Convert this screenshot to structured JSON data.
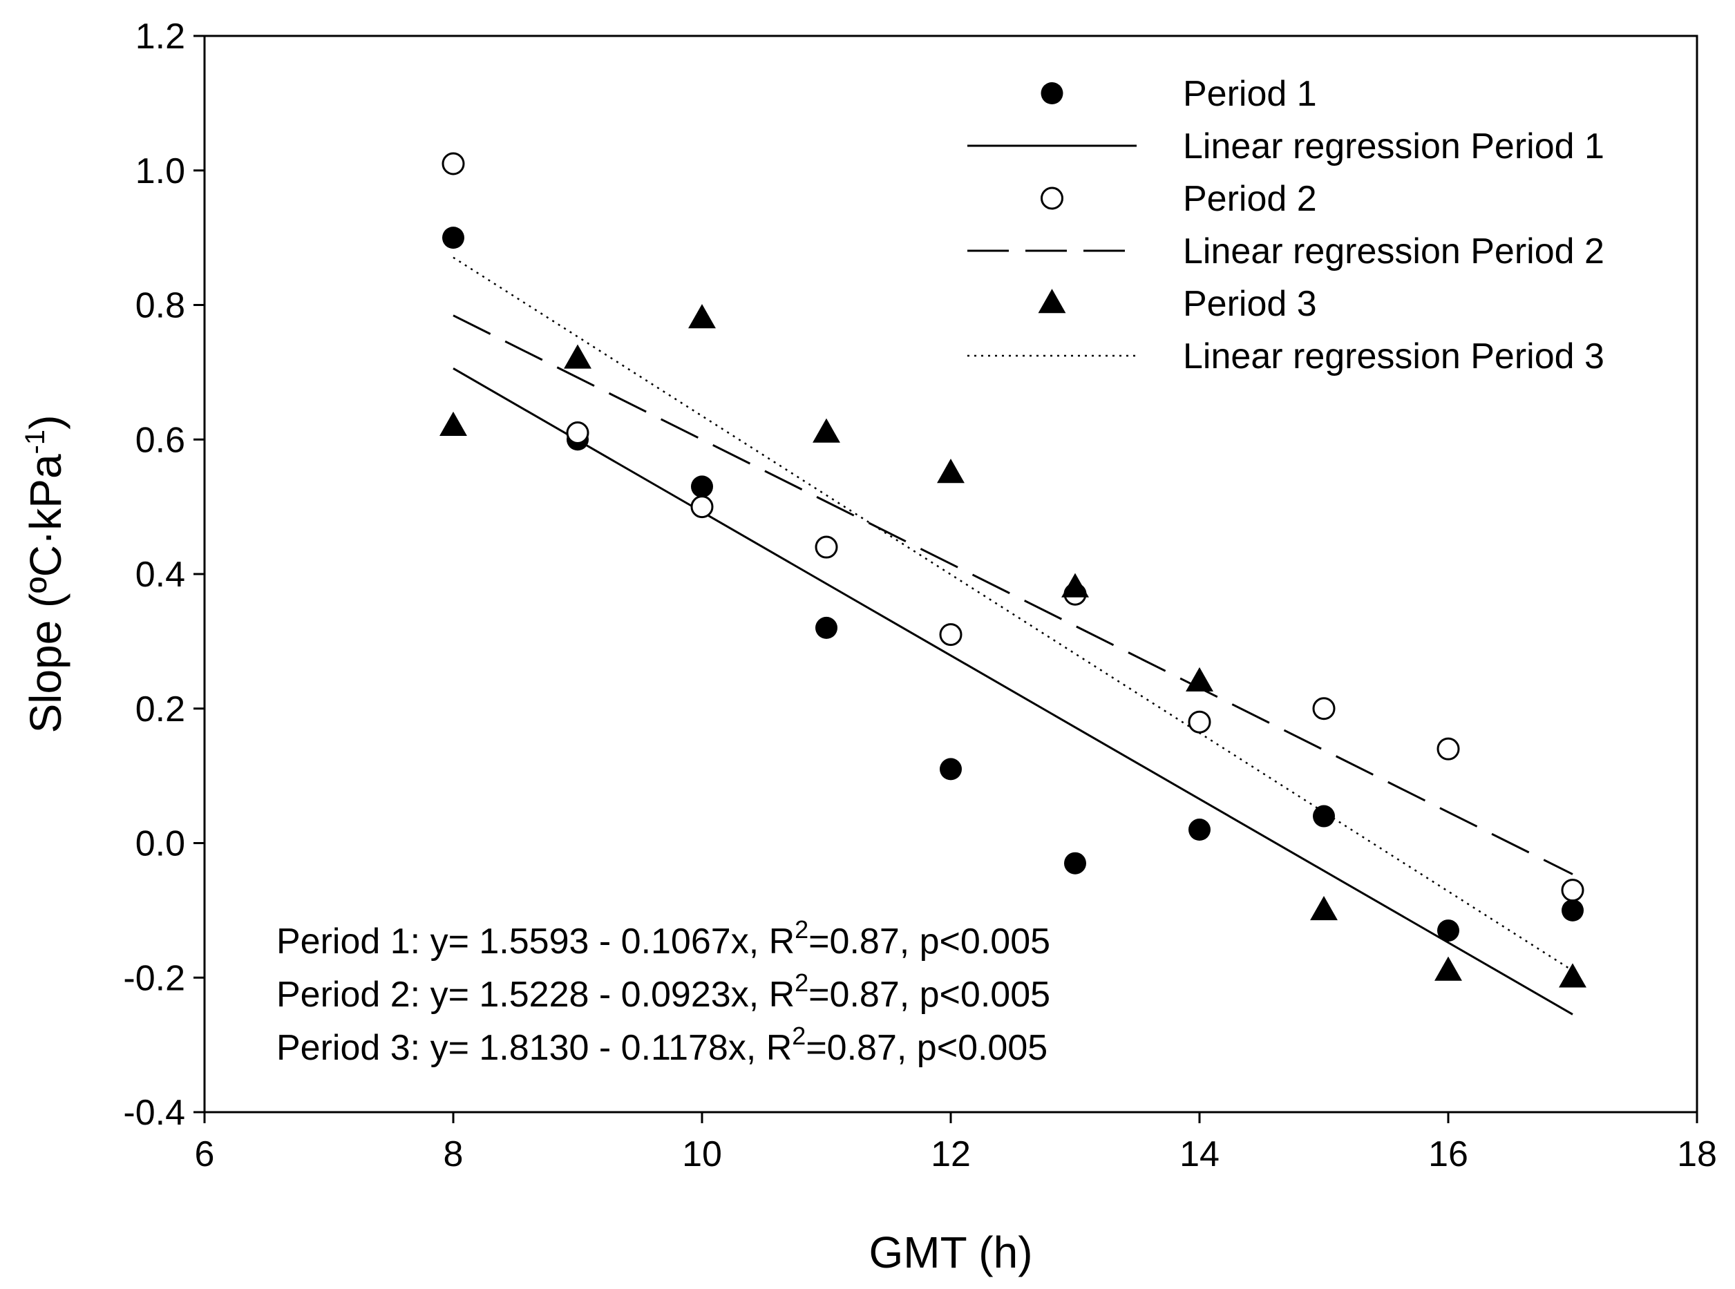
{
  "chart_data": {
    "type": "scatter",
    "title": "",
    "xlabel": "GMT (h)",
    "ylabel": {
      "main": "Slope (ºC·kPa",
      "sup": "-1",
      "end": ")"
    },
    "xlim": [
      6,
      18
    ],
    "ylim": [
      -0.4,
      1.2
    ],
    "x_ticks": [
      6,
      8,
      10,
      12,
      14,
      16,
      18
    ],
    "y_ticks": [
      -0.4,
      -0.2,
      0.0,
      0.2,
      0.4,
      0.6,
      0.8,
      1.0,
      1.2
    ],
    "x_tick_labels": [
      "6",
      "8",
      "10",
      "12",
      "14",
      "16",
      "18"
    ],
    "y_tick_labels": [
      "-0.4",
      "-0.2",
      "0.0",
      "0.2",
      "0.4",
      "0.6",
      "0.8",
      "1.0",
      "1.2"
    ],
    "grid": false,
    "legend_position": "top-right",
    "series": [
      {
        "name": "Period 1",
        "marker": "filled-circle",
        "x": [
          8,
          9,
          10,
          11,
          12,
          13,
          14,
          15,
          16,
          17
        ],
        "y": [
          0.9,
          0.6,
          0.53,
          0.32,
          0.11,
          -0.03,
          0.02,
          0.04,
          -0.13,
          -0.1
        ]
      },
      {
        "name": "Period 2",
        "marker": "open-circle",
        "x": [
          8,
          9,
          10,
          11,
          12,
          13,
          14,
          15,
          16,
          17
        ],
        "y": [
          1.01,
          0.61,
          0.5,
          0.44,
          0.31,
          0.37,
          0.18,
          0.2,
          0.14,
          -0.07
        ]
      },
      {
        "name": "Period 3",
        "marker": "filled-triangle",
        "x": [
          8,
          9,
          10,
          11,
          12,
          13,
          14,
          15,
          16,
          17
        ],
        "y": [
          0.62,
          0.72,
          0.78,
          0.61,
          0.55,
          0.38,
          0.24,
          -0.1,
          -0.19,
          -0.2
        ]
      }
    ],
    "regressions": [
      {
        "name": "Linear regression Period 1",
        "style": "solid",
        "intercept": 1.5593,
        "slope": -0.1067,
        "x_range": [
          8,
          17
        ]
      },
      {
        "name": "Linear regression Period 2",
        "style": "dashed",
        "intercept": 1.5228,
        "slope": -0.0923,
        "x_range": [
          8,
          17
        ]
      },
      {
        "name": "Linear regression Period 3",
        "style": "dotted",
        "intercept": 1.813,
        "slope": -0.1178,
        "x_range": [
          8,
          17
        ]
      }
    ],
    "legend": [
      {
        "label": "Period 1",
        "symbol": "filled-circle"
      },
      {
        "label": "Linear regression Period 1",
        "symbol": "solid"
      },
      {
        "label": "Period 2",
        "symbol": "open-circle"
      },
      {
        "label": "Linear regression Period 2",
        "symbol": "dashed"
      },
      {
        "label": "Period 3",
        "symbol": "filled-triangle"
      },
      {
        "label": "Linear regression Period 3",
        "symbol": "dotted"
      }
    ],
    "annotations": [
      {
        "pre": "Period 1: y= 1.5593 - 0.1067x, R",
        "sup": "2",
        "post": "=0.87, p<0.005"
      },
      {
        "pre": "Period 2: y= 1.5228 - 0.0923x, R",
        "sup": "2",
        "post": "=0.87, p<0.005"
      },
      {
        "pre": "Period 3: y= 1.8130 - 0.1178x, R",
        "sup": "2",
        "post": "=0.87, p<0.005"
      }
    ]
  }
}
